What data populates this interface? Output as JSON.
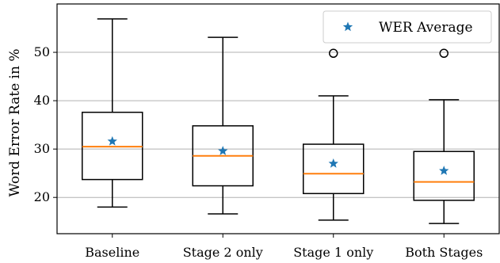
{
  "chart_data": {
    "type": "box",
    "categories": [
      "Baseline",
      "Stage 2 only",
      "Stage 1 only",
      "Both Stages"
    ],
    "ylabel": "Word Error Rate in %",
    "xlabel": "",
    "ylim": [
      12.5,
      60
    ],
    "yticks": [
      20,
      30,
      40,
      50
    ],
    "grid": "horizontal",
    "legend": {
      "position": "top-right",
      "entries": [
        "WER Average"
      ]
    },
    "boxes": [
      {
        "whisker_low": 18.0,
        "q1": 23.7,
        "median": 30.5,
        "q3": 37.6,
        "whisker_high": 56.9,
        "mean": 31.6,
        "outliers": []
      },
      {
        "whisker_low": 16.6,
        "q1": 22.4,
        "median": 28.6,
        "q3": 34.8,
        "whisker_high": 53.1,
        "mean": 29.6,
        "outliers": []
      },
      {
        "whisker_low": 15.3,
        "q1": 20.8,
        "median": 24.9,
        "q3": 31.0,
        "whisker_high": 41.0,
        "mean": 27.0,
        "outliers": [
          49.8
        ]
      },
      {
        "whisker_low": 14.6,
        "q1": 19.4,
        "median": 23.2,
        "q3": 29.5,
        "whisker_high": 40.2,
        "mean": 25.5,
        "outliers": [
          49.8
        ]
      }
    ],
    "colors": {
      "box": "#000000",
      "median": "#ff7f0e",
      "mean": "#1f77b4",
      "grid": "#b0b0b0"
    }
  }
}
